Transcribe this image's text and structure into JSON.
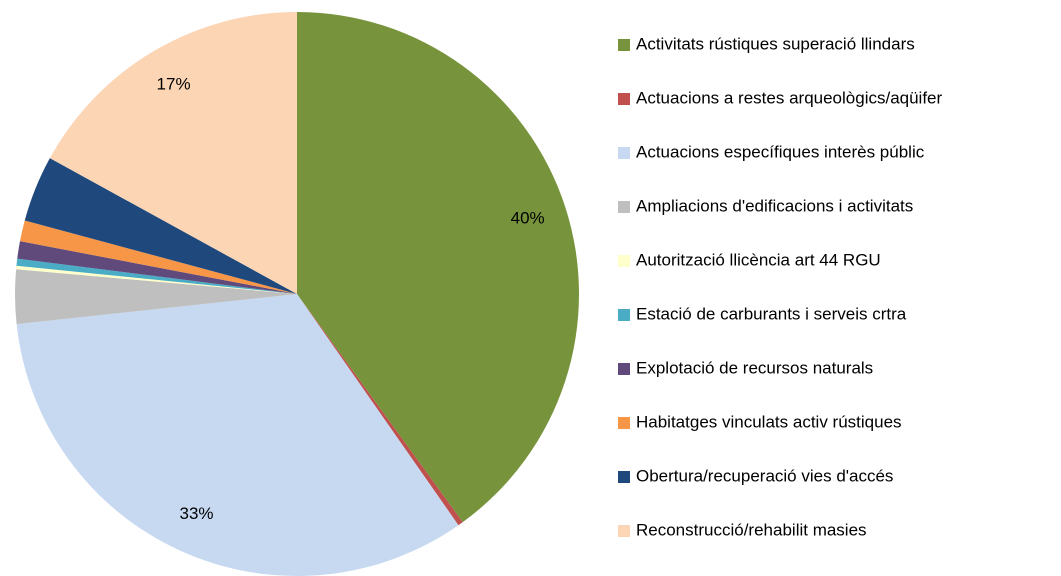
{
  "chart_data": {
    "type": "pie",
    "categories": [
      "Activitats rústiques superació llindars",
      "Actuacions a restes arqueològics/aqüifer",
      "Actuacions específiques interès públic",
      "Ampliacions d'edificacions i activitats",
      "Autorització llicència art 44 RGU",
      "Estació de carburants i serveis crtra",
      "Explotació de recursos naturals",
      "Habitatges vinculats activ rústiques",
      "Obertura/recuperació vies d'accés",
      "Reconstrucció/rehabilit masies"
    ],
    "values": [
      40,
      0.3,
      33,
      3.1,
      0.2,
      0.4,
      1,
      1.2,
      3.8,
      17
    ],
    "value_labels": [
      "40%",
      null,
      "33%",
      null,
      null,
      null,
      null,
      null,
      null,
      "17%"
    ],
    "colors": [
      "#77933c",
      "#c0504d",
      "#c6d9f1",
      "#bfbfbf",
      "#ffffcc",
      "#4bacc6",
      "#604a7b",
      "#f79646",
      "#1f497d",
      "#fcd5b5"
    ],
    "legend": "right"
  }
}
